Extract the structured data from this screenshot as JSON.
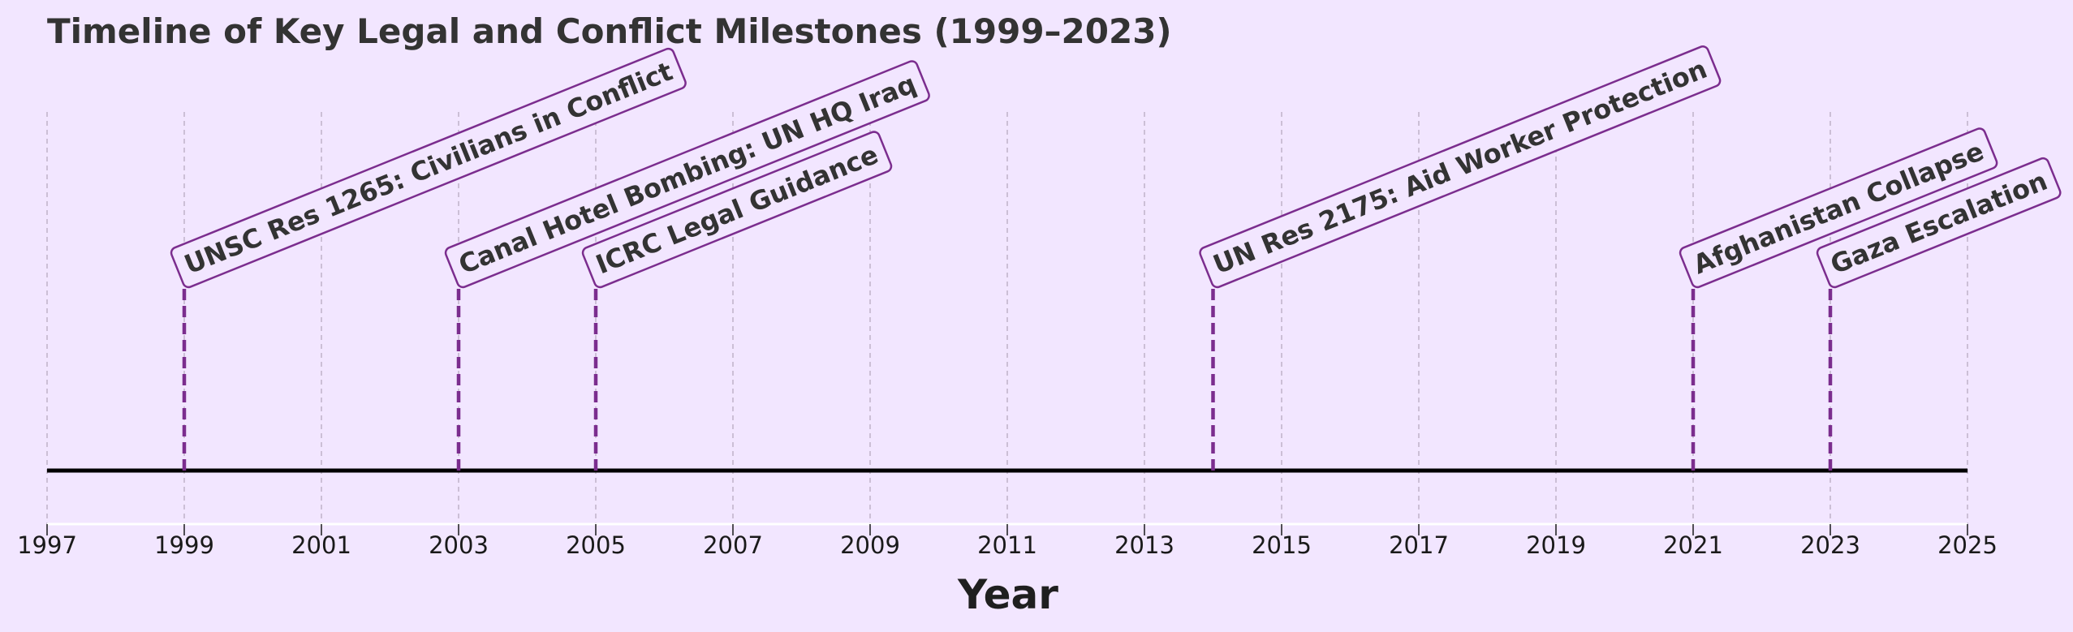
{
  "chart_data": {
    "type": "timeline",
    "title": "Timeline of Key Legal and Conflict Milestones (1999–2023)",
    "xlabel": "Year",
    "ylabel": "",
    "xlim": [
      1997,
      2025
    ],
    "xticks": [
      1997,
      1999,
      2001,
      2003,
      2005,
      2007,
      2009,
      2011,
      2013,
      2015,
      2017,
      2019,
      2021,
      2023,
      2025
    ],
    "grid": true,
    "events": [
      {
        "year": 1999,
        "label": "UNSC Res 1265: Civilians in Conflict",
        "level": 0
      },
      {
        "year": 2003,
        "label": "Canal Hotel Bombing: UN HQ Iraq",
        "level": 0
      },
      {
        "year": 2005,
        "label": "ICRC Legal Guidance",
        "level": 0
      },
      {
        "year": 2014,
        "label": "UN Res 2175: Aid Worker Protection",
        "level": 0
      },
      {
        "year": 2021,
        "label": "Afghanistan Collapse",
        "level": 0
      },
      {
        "year": 2023,
        "label": "Gaza Escalation",
        "level": 0
      }
    ],
    "colors": {
      "background": "#f2e6ff",
      "stem": "#7b2d8e",
      "baseline": "#000000",
      "grid": "#bfb2c9",
      "label_text": "#333333",
      "label_border": "#7b2d8e"
    }
  }
}
